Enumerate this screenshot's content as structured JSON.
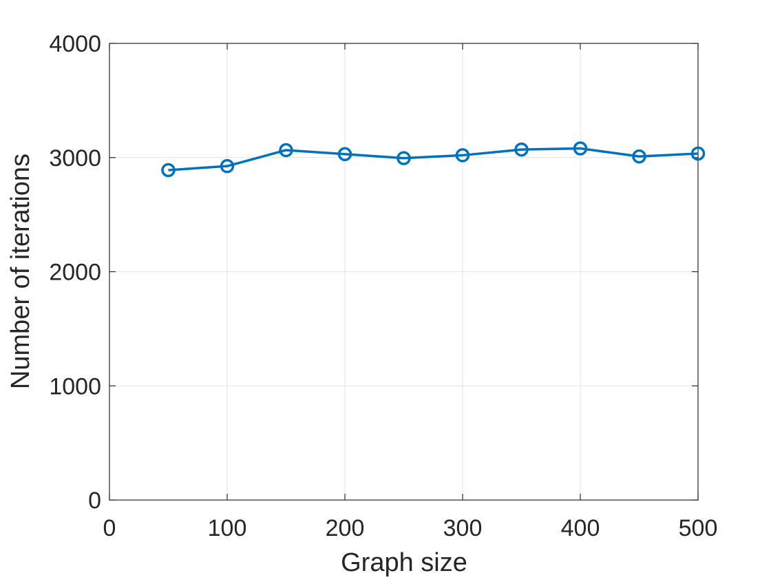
{
  "chart_data": {
    "type": "line",
    "title": "",
    "xlabel": "Graph size",
    "ylabel": "Number of iterations",
    "xlim": [
      0,
      500
    ],
    "ylim": [
      0,
      4000
    ],
    "xticks": [
      0,
      100,
      200,
      300,
      400,
      500
    ],
    "yticks": [
      0,
      1000,
      2000,
      3000,
      4000
    ],
    "xtick_labels": [
      "0",
      "100",
      "200",
      "300",
      "400",
      "500"
    ],
    "ytick_labels": [
      "0",
      "1000",
      "2000",
      "3000",
      "4000"
    ],
    "grid": true,
    "box": true,
    "x": [
      50,
      100,
      150,
      200,
      250,
      300,
      350,
      400,
      450,
      500
    ],
    "series": [
      {
        "values": [
          2890,
          2925,
          3065,
          3030,
          2995,
          3020,
          3070,
          3080,
          3010,
          3035
        ],
        "color": "#0072BD",
        "marker": "circle"
      }
    ]
  }
}
